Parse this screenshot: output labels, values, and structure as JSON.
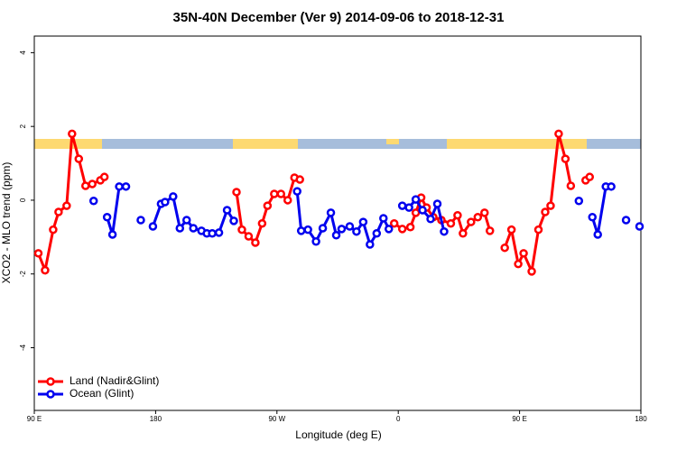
{
  "chart_data": {
    "type": "line",
    "title": "35N-40N December (Ver 9)   2014-09-06 to 2018-12-31",
    "x_label": "Longitude (deg E)",
    "y_label": "XCO2 - MLO trend (ppm)",
    "xlim": [
      90,
      540
    ],
    "ylim": [
      -5.7,
      4.45
    ],
    "xticks": [
      {
        "value": 90,
        "label": "90 E"
      },
      {
        "value": 180,
        "label": "180"
      },
      {
        "value": 270,
        "label": "90 W"
      },
      {
        "value": 360,
        "label": "0"
      },
      {
        "value": 450,
        "label": "90 E"
      },
      {
        "value": 540,
        "label": "180"
      }
    ],
    "yticks": [
      -4,
      -2,
      0,
      2,
      4
    ],
    "legend": "bottom-left",
    "series": [
      {
        "name": "Land (Nadir&Glint)",
        "color": "#ff0000",
        "x": [
          93,
          98,
          104,
          108,
          114,
          118,
          123,
          128,
          133,
          139,
          142,
          null,
          240,
          244,
          249,
          254,
          259,
          263,
          268,
          273,
          278,
          283,
          287,
          null,
          357,
          363,
          369,
          373,
          377,
          381,
          386,
          392,
          399,
          404,
          408,
          414,
          419,
          424,
          428,
          null,
          439,
          444,
          449,
          453,
          459,
          464,
          469,
          473,
          479,
          484,
          488,
          null,
          499,
          502
        ],
        "values": [
          -1.44,
          -1.9,
          -0.8,
          -0.32,
          -0.15,
          1.8,
          1.12,
          0.39,
          0.44,
          0.54,
          0.63,
          null,
          0.22,
          -0.8,
          -0.98,
          -1.15,
          -0.63,
          -0.15,
          0.17,
          0.17,
          0,
          0.61,
          0.56,
          null,
          -0.63,
          -0.78,
          -0.73,
          -0.34,
          0.07,
          -0.2,
          -0.46,
          -0.54,
          -0.63,
          -0.41,
          -0.9,
          -0.59,
          -0.46,
          -0.34,
          -0.83,
          null,
          -1.29,
          -0.8,
          -1.73,
          -1.44,
          -1.93,
          -0.8,
          -0.32,
          -0.15,
          1.8,
          1.12,
          0.39,
          null,
          0.54,
          0.63
        ]
      },
      {
        "name": "Ocean (Glint)",
        "color": "#0000ee",
        "x": [
          134,
          null,
          144,
          148,
          153,
          158,
          null,
          169,
          null,
          178,
          184,
          187,
          193,
          198,
          203,
          208,
          214,
          218,
          222,
          227,
          233,
          238,
          null,
          285,
          288,
          293,
          299,
          304,
          310,
          314,
          318,
          324,
          329,
          334,
          339,
          344,
          349,
          353,
          null,
          363,
          368,
          373,
          378,
          384,
          389,
          394,
          null,
          494,
          null,
          504,
          508,
          514,
          518,
          null,
          529,
          null,
          539
        ],
        "values": [
          -0.02,
          null,
          -0.46,
          -0.93,
          0.37,
          0.37,
          null,
          -0.54,
          null,
          -0.71,
          -0.1,
          -0.05,
          0.1,
          -0.76,
          -0.54,
          -0.76,
          -0.83,
          -0.9,
          -0.9,
          -0.88,
          -0.27,
          -0.56,
          null,
          0.24,
          -0.83,
          -0.8,
          -1.12,
          -0.76,
          -0.34,
          -0.95,
          -0.78,
          -0.71,
          -0.85,
          -0.59,
          -1.2,
          -0.9,
          -0.49,
          -0.78,
          null,
          -0.15,
          -0.2,
          0.02,
          -0.27,
          -0.51,
          -0.1,
          -0.85,
          null,
          -0.02,
          null,
          -0.46,
          -0.93,
          0.37,
          0.37,
          null,
          -0.54,
          null,
          -0.71
        ]
      }
    ]
  }
}
